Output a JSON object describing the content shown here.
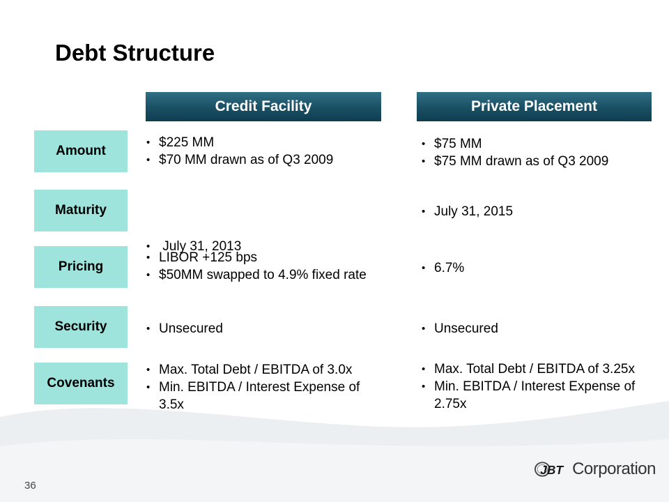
{
  "title": "Debt Structure",
  "columns": [
    "Credit Facility",
    "Private Placement"
  ],
  "rows": [
    {
      "label": "Amount",
      "credit_facility": [
        "$225 MM",
        "$70 MM drawn as of Q3 2009"
      ],
      "private_placement": [
        "$75 MM",
        "$75 MM drawn as of Q3 2009"
      ]
    },
    {
      "label": "Maturity",
      "credit_facility": [
        " July 31, 2013"
      ],
      "private_placement": [
        "July 31, 2015"
      ]
    },
    {
      "label": "Pricing",
      "credit_facility": [
        "LIBOR +125 bps",
        "$50MM swapped to 4.9% fixed rate"
      ],
      "private_placement": [
        "6.7%"
      ]
    },
    {
      "label": "Security",
      "credit_facility": [
        "Unsecured"
      ],
      "private_placement": [
        "Unsecured"
      ]
    },
    {
      "label": "Covenants",
      "credit_facility": [
        "Max. Total Debt / EBITDA  of 3.0x",
        "Min. EBITDA / Interest Expense of 3.5x"
      ],
      "private_placement": [
        "Max. Total Debt / EBITDA  of 3.25x",
        "Min. EBITDA / Interest Expense of 2.75x"
      ]
    }
  ],
  "footer": {
    "page_number": "36",
    "logo_mark_text": "JBT",
    "logo_text": "Corporation"
  },
  "colors": {
    "header_gradient_top": "#2f6f85",
    "header_gradient_bottom": "#0f3d50",
    "row_label_bg": "#9fe3dd",
    "swoosh": "#eceff1"
  },
  "icons": {
    "logo": "jbt-logo-icon"
  }
}
